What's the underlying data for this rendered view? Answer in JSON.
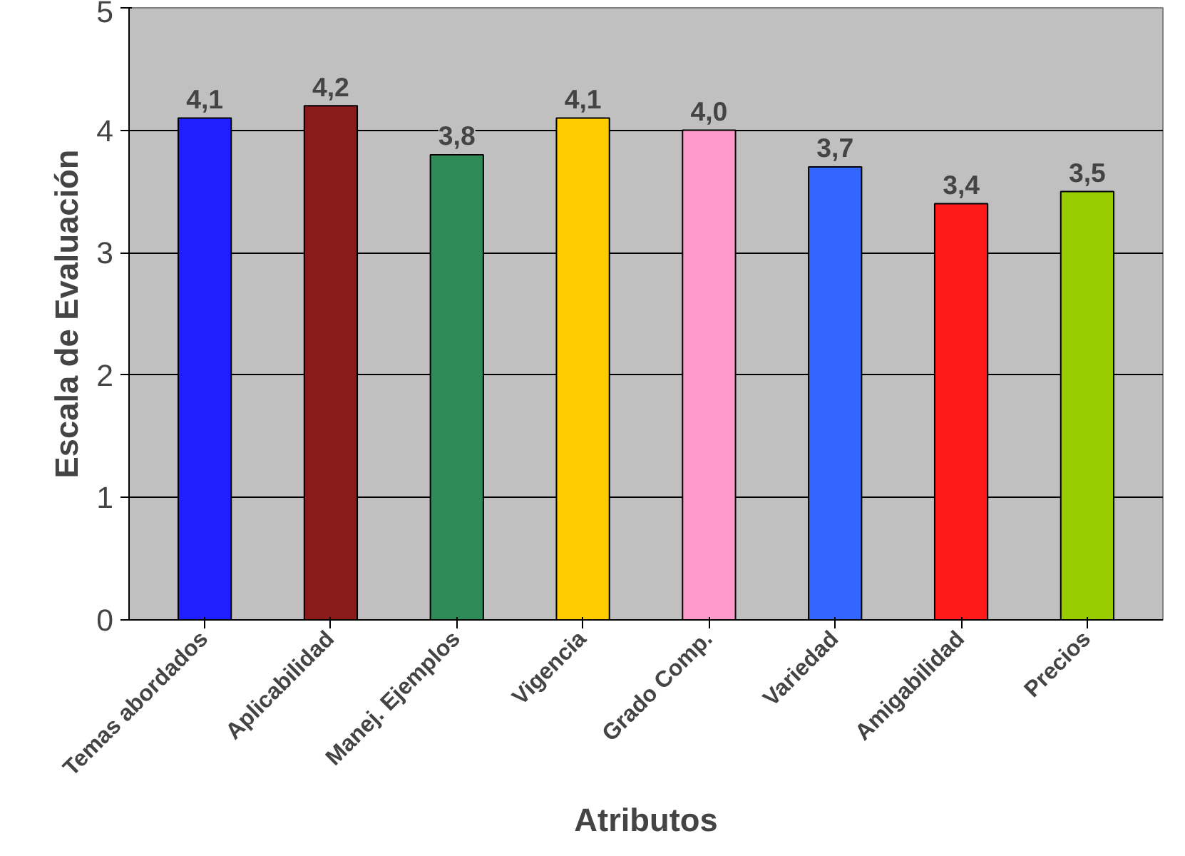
{
  "chart_data": {
    "type": "bar",
    "xlabel": "Atributos",
    "ylabel": "Escala de Evaluación",
    "categories": [
      "Temas abordados",
      "Aplicabilidad",
      "Manej. Ejemplos",
      "Vigencia",
      "Grado Comp.",
      "Variedad",
      "Amigabilidad",
      "Precios"
    ],
    "values": [
      4.1,
      4.2,
      3.8,
      4.1,
      4.0,
      3.7,
      3.4,
      3.5
    ],
    "value_labels": [
      "4,1",
      "4,2",
      "3,8",
      "4,1",
      "4,0",
      "3,7",
      "3,4",
      "3,5"
    ],
    "colors": [
      "#1f1fff",
      "#8b1a1a",
      "#2e8b57",
      "#ffcc00",
      "#ff99cc",
      "#3366ff",
      "#ff1a1a",
      "#99cc00"
    ],
    "ylim": [
      0,
      5
    ],
    "yticks": [
      0,
      1,
      2,
      3,
      4,
      5
    ],
    "grid": "y"
  }
}
